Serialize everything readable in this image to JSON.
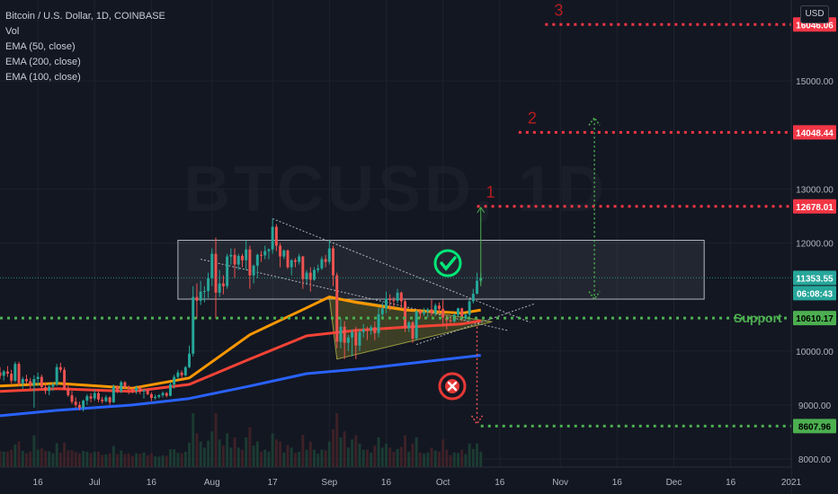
{
  "header": {
    "title": "Bitcoin / U.S. Dollar, 1D, COINBASE",
    "indicators": [
      "Vol",
      "EMA (50, close)",
      "EMA (200, close)",
      "EMA (100, close)"
    ],
    "currency_button": "USD"
  },
  "chart_data": {
    "type": "candlestick",
    "y_ticks": [
      8000,
      9000,
      10000,
      12000,
      13000,
      15000
    ],
    "y_tick_labels": [
      "8000.00",
      "9000.00",
      "10000.00",
      "12000.00",
      "13000.00",
      "15000.00"
    ],
    "ylim": [
      7850,
      16500
    ],
    "x_ticks": [
      {
        "label": "16",
        "date": "2020-06-16"
      },
      {
        "label": "Jul",
        "date": "2020-07-01"
      },
      {
        "label": "16",
        "date": "2020-07-16"
      },
      {
        "label": "Aug",
        "date": "2020-08-01"
      },
      {
        "label": "17",
        "date": "2020-08-17"
      },
      {
        "label": "Sep",
        "date": "2020-09-01"
      },
      {
        "label": "16",
        "date": "2020-09-16"
      },
      {
        "label": "Oct",
        "date": "2020-10-01"
      },
      {
        "label": "16",
        "date": "2020-10-16"
      },
      {
        "label": "Nov",
        "date": "2020-11-01"
      },
      {
        "label": "16",
        "date": "2020-11-16"
      },
      {
        "label": "Dec",
        "date": "2020-12-01"
      },
      {
        "label": "16",
        "date": "2020-12-16"
      },
      {
        "label": "2021",
        "date": "2021-01-01"
      }
    ],
    "xlim": [
      "2020-06-06",
      "2021-01-01"
    ],
    "last_price": {
      "value": 11353.55,
      "label": "11353.55",
      "countdown": "06:08:43",
      "color": "#26a69a"
    },
    "price_levels": [
      {
        "label": "16046.06",
        "value": 16046.06,
        "color": "#f23645",
        "marker": "3",
        "from": "2020-10-28",
        "style": "dotted"
      },
      {
        "label": "14048.44",
        "value": 14048.44,
        "color": "#f23645",
        "marker": "2",
        "from": "2020-10-21",
        "style": "dotted"
      },
      {
        "label": "12678.01",
        "value": 12678.01,
        "color": "#f23645",
        "marker": "1",
        "from": "2020-10-10",
        "style": "dotted"
      },
      {
        "label": "10610.17",
        "value": 10610.17,
        "color": "#4caf50",
        "marker": "Support",
        "from": "2020-06-06",
        "style": "dotted"
      },
      {
        "label": "8607.96",
        "value": 8607.96,
        "color": "#4caf50",
        "marker": "",
        "from": "2020-10-11",
        "style": "dotted"
      }
    ],
    "range_box": {
      "from": "2020-07-23",
      "to": "2020-12-09",
      "low": 10960,
      "high": 12050
    },
    "triangle": {
      "points": [
        [
          "2020-09-01",
          11000
        ],
        [
          "2020-09-03",
          9850
        ],
        [
          "2020-10-14",
          10540
        ]
      ],
      "color": "#8a8a2a"
    },
    "trendlines": [
      {
        "from": [
          "2020-07-29",
          11700
        ],
        "to": [
          "2020-10-18",
          10380
        ]
      },
      {
        "from": [
          "2020-08-17",
          12450
        ],
        "to": [
          "2020-10-24",
          10530
        ]
      },
      {
        "from": [
          "2020-09-24",
          10120
        ],
        "to": [
          "2020-10-25",
          10870
        ]
      }
    ],
    "ema_series": [
      {
        "name": "EMA 50",
        "color": "#ff9800",
        "points": [
          [
            "2020-06-06",
            9350
          ],
          [
            "2020-06-21",
            9400
          ],
          [
            "2020-07-11",
            9310
          ],
          [
            "2020-07-26",
            9500
          ],
          [
            "2020-08-11",
            10300
          ],
          [
            "2020-08-26",
            10800
          ],
          [
            "2020-09-01",
            11000
          ],
          [
            "2020-09-08",
            10900
          ],
          [
            "2020-09-21",
            10760
          ],
          [
            "2020-10-06",
            10700
          ],
          [
            "2020-10-11",
            10760
          ]
        ]
      },
      {
        "name": "EMA 100",
        "color": "#f44336",
        "points": [
          [
            "2020-06-06",
            9250
          ],
          [
            "2020-06-21",
            9300
          ],
          [
            "2020-07-11",
            9250
          ],
          [
            "2020-07-26",
            9380
          ],
          [
            "2020-08-11",
            9850
          ],
          [
            "2020-08-26",
            10280
          ],
          [
            "2020-09-08",
            10380
          ],
          [
            "2020-09-21",
            10440
          ],
          [
            "2020-10-06",
            10500
          ],
          [
            "2020-10-11",
            10560
          ]
        ]
      },
      {
        "name": "EMA 200",
        "color": "#2962ff",
        "points": [
          [
            "2020-06-06",
            8800
          ],
          [
            "2020-06-21",
            8900
          ],
          [
            "2020-07-11",
            9000
          ],
          [
            "2020-07-26",
            9120
          ],
          [
            "2020-08-11",
            9350
          ],
          [
            "2020-08-26",
            9580
          ],
          [
            "2020-09-11",
            9680
          ],
          [
            "2020-09-26",
            9800
          ],
          [
            "2020-10-11",
            9920
          ]
        ]
      }
    ],
    "candles": [
      [
        "2020-06-06",
        9600,
        9700,
        9480,
        9540
      ],
      [
        "2020-06-07",
        9540,
        9650,
        9450,
        9620
      ],
      [
        "2020-06-08",
        9620,
        9720,
        9520,
        9580
      ],
      [
        "2020-06-09",
        9580,
        9650,
        9400,
        9450
      ],
      [
        "2020-06-10",
        9450,
        9800,
        9420,
        9760
      ],
      [
        "2020-06-11",
        9760,
        9800,
        9350,
        9400
      ],
      [
        "2020-06-12",
        9400,
        9520,
        9300,
        9480
      ],
      [
        "2020-06-13",
        9480,
        9560,
        9400,
        9440
      ],
      [
        "2020-06-14",
        9440,
        9500,
        9300,
        9360
      ],
      [
        "2020-06-15",
        9360,
        9550,
        8950,
        9480
      ],
      [
        "2020-06-16",
        9480,
        9600,
        9350,
        9520
      ],
      [
        "2020-06-17",
        9520,
        9560,
        9280,
        9330
      ],
      [
        "2020-06-18",
        9330,
        9420,
        9200,
        9260
      ],
      [
        "2020-06-19",
        9260,
        9390,
        9180,
        9340
      ],
      [
        "2020-06-20",
        9340,
        9420,
        9260,
        9380
      ],
      [
        "2020-06-21",
        9380,
        9760,
        9350,
        9700
      ],
      [
        "2020-06-22",
        9700,
        9780,
        9600,
        9650
      ],
      [
        "2020-06-23",
        9650,
        9700,
        9280,
        9300
      ],
      [
        "2020-06-24",
        9300,
        9380,
        9150,
        9180
      ],
      [
        "2020-06-25",
        9180,
        9260,
        9020,
        9060
      ],
      [
        "2020-06-26",
        9060,
        9140,
        8950,
        9000
      ],
      [
        "2020-06-27",
        9000,
        9060,
        8900,
        8950
      ],
      [
        "2020-06-28",
        8950,
        9100,
        8880,
        9080
      ],
      [
        "2020-06-29",
        9080,
        9200,
        9000,
        9160
      ],
      [
        "2020-06-30",
        9160,
        9220,
        9050,
        9120
      ],
      [
        "2020-07-01",
        9120,
        9280,
        9080,
        9220
      ],
      [
        "2020-07-02",
        9220,
        9250,
        9050,
        9100
      ],
      [
        "2020-07-03",
        9100,
        9150,
        9030,
        9070
      ],
      [
        "2020-07-04",
        9070,
        9180,
        9050,
        9140
      ],
      [
        "2020-07-05",
        9140,
        9160,
        9000,
        9050
      ],
      [
        "2020-07-06",
        9050,
        9380,
        9040,
        9340
      ],
      [
        "2020-07-07",
        9340,
        9360,
        9220,
        9250
      ],
      [
        "2020-07-08",
        9250,
        9450,
        9220,
        9420
      ],
      [
        "2020-07-09",
        9420,
        9440,
        9300,
        9330
      ],
      [
        "2020-07-10",
        9330,
        9360,
        9200,
        9300
      ],
      [
        "2020-07-11",
        9300,
        9320,
        9220,
        9260
      ],
      [
        "2020-07-12",
        9260,
        9360,
        9200,
        9320
      ],
      [
        "2020-07-13",
        9320,
        9350,
        9200,
        9250
      ],
      [
        "2020-07-14",
        9250,
        9300,
        9120,
        9270
      ],
      [
        "2020-07-15",
        9270,
        9290,
        9180,
        9200
      ],
      [
        "2020-07-16",
        9200,
        9230,
        9070,
        9130
      ],
      [
        "2020-07-17",
        9130,
        9190,
        9100,
        9150
      ],
      [
        "2020-07-18",
        9150,
        9200,
        9120,
        9180
      ],
      [
        "2020-07-19",
        9180,
        9250,
        9140,
        9220
      ],
      [
        "2020-07-20",
        9220,
        9240,
        9140,
        9170
      ],
      [
        "2020-07-21",
        9170,
        9420,
        9160,
        9380
      ],
      [
        "2020-07-22",
        9380,
        9560,
        9300,
        9520
      ],
      [
        "2020-07-23",
        9520,
        9650,
        9480,
        9600
      ],
      [
        "2020-07-24",
        9600,
        9640,
        9480,
        9550
      ],
      [
        "2020-07-25",
        9550,
        9720,
        9520,
        9700
      ],
      [
        "2020-07-26",
        9700,
        10100,
        9680,
        9950
      ],
      [
        "2020-07-27",
        9950,
        11200,
        9900,
        11000
      ],
      [
        "2020-07-28",
        11000,
        11250,
        10600,
        10930
      ],
      [
        "2020-07-29",
        10930,
        11300,
        10850,
        11100
      ],
      [
        "2020-07-30",
        11100,
        11200,
        10900,
        11110
      ],
      [
        "2020-07-31",
        11110,
        11450,
        10980,
        11350
      ],
      [
        "2020-08-01",
        11350,
        11900,
        11200,
        11800
      ],
      [
        "2020-08-02",
        11800,
        12100,
        10600,
        11080
      ],
      [
        "2020-08-03",
        11080,
        11500,
        11000,
        11250
      ],
      [
        "2020-08-04",
        11250,
        11400,
        11050,
        11200
      ],
      [
        "2020-08-05",
        11200,
        11800,
        11150,
        11750
      ],
      [
        "2020-08-06",
        11750,
        11900,
        11600,
        11780
      ],
      [
        "2020-08-07",
        11780,
        11900,
        11350,
        11600
      ],
      [
        "2020-08-08",
        11600,
        11800,
        11500,
        11760
      ],
      [
        "2020-08-09",
        11760,
        11800,
        11550,
        11680
      ],
      [
        "2020-08-10",
        11680,
        12050,
        11500,
        11880
      ],
      [
        "2020-08-11",
        11880,
        11950,
        11150,
        11400
      ],
      [
        "2020-08-12",
        11400,
        11600,
        11250,
        11580
      ],
      [
        "2020-08-13",
        11580,
        11800,
        11350,
        11780
      ],
      [
        "2020-08-14",
        11780,
        11850,
        11650,
        11770
      ],
      [
        "2020-08-15",
        11770,
        11950,
        11700,
        11850
      ],
      [
        "2020-08-16",
        11850,
        11900,
        11700,
        11880
      ],
      [
        "2020-08-17",
        11880,
        12450,
        11800,
        12300
      ],
      [
        "2020-08-18",
        12300,
        12350,
        11850,
        11950
      ],
      [
        "2020-08-19",
        11950,
        12000,
        11550,
        11750
      ],
      [
        "2020-08-20",
        11750,
        11880,
        11700,
        11860
      ],
      [
        "2020-08-21",
        11860,
        11880,
        11520,
        11550
      ],
      [
        "2020-08-22",
        11550,
        11700,
        11400,
        11680
      ],
      [
        "2020-08-23",
        11680,
        11720,
        11550,
        11650
      ],
      [
        "2020-08-24",
        11650,
        11800,
        11600,
        11750
      ],
      [
        "2020-08-25",
        11750,
        11760,
        11150,
        11330
      ],
      [
        "2020-08-26",
        11330,
        11500,
        11250,
        11450
      ],
      [
        "2020-08-27",
        11450,
        11550,
        11100,
        11320
      ],
      [
        "2020-08-28",
        11320,
        11550,
        11300,
        11500
      ],
      [
        "2020-08-29",
        11500,
        11600,
        11450,
        11530
      ],
      [
        "2020-08-30",
        11530,
        11750,
        11500,
        11700
      ],
      [
        "2020-08-31",
        11700,
        11780,
        11550,
        11650
      ],
      [
        "2020-09-01",
        11650,
        12050,
        11600,
        11900
      ],
      [
        "2020-09-02",
        11900,
        11950,
        11200,
        11400
      ],
      [
        "2020-09-03",
        11400,
        11450,
        10050,
        10170
      ],
      [
        "2020-09-04",
        10170,
        10600,
        10050,
        10450
      ],
      [
        "2020-09-05",
        10450,
        10550,
        9850,
        10150
      ],
      [
        "2020-09-06",
        10150,
        10300,
        10000,
        10250
      ],
      [
        "2020-09-07",
        10250,
        10400,
        9900,
        10350
      ],
      [
        "2020-09-08",
        10350,
        10450,
        9850,
        10100
      ],
      [
        "2020-09-09",
        10100,
        10400,
        10000,
        10350
      ],
      [
        "2020-09-10",
        10350,
        10500,
        10250,
        10400
      ],
      [
        "2020-09-11",
        10400,
        10450,
        10200,
        10380
      ],
      [
        "2020-09-12",
        10380,
        10480,
        10300,
        10440
      ],
      [
        "2020-09-13",
        10440,
        10550,
        10200,
        10330
      ],
      [
        "2020-09-14",
        10330,
        10800,
        10250,
        10680
      ],
      [
        "2020-09-15",
        10680,
        10900,
        10600,
        10790
      ],
      [
        "2020-09-16",
        10790,
        11100,
        10700,
        10970
      ],
      [
        "2020-09-17",
        10970,
        11050,
        10750,
        10940
      ],
      [
        "2020-09-18",
        10940,
        11000,
        10800,
        10930
      ],
      [
        "2020-09-19",
        10930,
        11150,
        10880,
        11080
      ],
      [
        "2020-09-20",
        11080,
        11100,
        10780,
        10920
      ],
      [
        "2020-09-21",
        10920,
        10950,
        10350,
        10420
      ],
      [
        "2020-09-22",
        10420,
        10550,
        10350,
        10530
      ],
      [
        "2020-09-23",
        10530,
        10550,
        10150,
        10230
      ],
      [
        "2020-09-24",
        10230,
        10750,
        10200,
        10740
      ],
      [
        "2020-09-25",
        10740,
        10780,
        10600,
        10690
      ],
      [
        "2020-09-26",
        10690,
        10800,
        10650,
        10730
      ],
      [
        "2020-09-27",
        10730,
        10800,
        10620,
        10770
      ],
      [
        "2020-09-28",
        10770,
        10950,
        10650,
        10700
      ],
      [
        "2020-09-29",
        10700,
        10880,
        10650,
        10840
      ],
      [
        "2020-09-30",
        10840,
        10900,
        10700,
        10780
      ],
      [
        "2020-10-01",
        10780,
        10950,
        10450,
        10620
      ],
      [
        "2020-10-02",
        10620,
        10650,
        10400,
        10570
      ],
      [
        "2020-10-03",
        10570,
        10620,
        10500,
        10550
      ],
      [
        "2020-10-04",
        10550,
        10700,
        10520,
        10670
      ],
      [
        "2020-10-05",
        10670,
        10800,
        10630,
        10790
      ],
      [
        "2020-10-06",
        10790,
        10800,
        10550,
        10600
      ],
      [
        "2020-10-07",
        10600,
        10700,
        10560,
        10670
      ],
      [
        "2020-10-08",
        10670,
        10950,
        10550,
        10920
      ],
      [
        "2020-10-09",
        10920,
        11150,
        10880,
        11060
      ],
      [
        "2020-10-10",
        11060,
        11450,
        11050,
        11300
      ],
      [
        "2020-10-11",
        11300,
        11450,
        11250,
        11353.55
      ]
    ]
  }
}
